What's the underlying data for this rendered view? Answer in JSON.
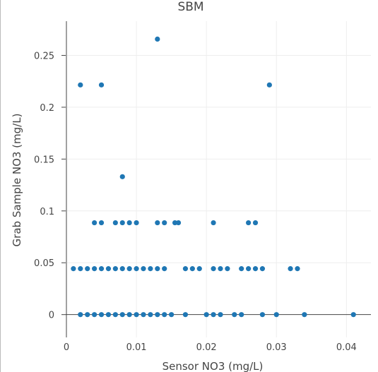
{
  "chart_data": {
    "type": "scatter",
    "title": "SBM",
    "xlabel": "Sensor NO3 (mg/L)",
    "ylabel": "Grab Sample NO3 (mg/L)",
    "xlim": [
      -0.0001,
      0.0435
    ],
    "ylim": [
      -0.022,
      0.283
    ],
    "xticks": [
      0,
      0.01,
      0.02,
      0.03,
      0.04
    ],
    "xtick_labels": [
      "0",
      "0.01",
      "0.02",
      "0.03",
      "0.04"
    ],
    "yticks": [
      0,
      0.05,
      0.1,
      0.15,
      0.2,
      0.25
    ],
    "ytick_labels": [
      "0",
      "0.05",
      "0.1",
      "0.15",
      "0.2",
      "0.25"
    ],
    "grid": true,
    "marker_color": "#1f77b4",
    "series": [
      {
        "x": [
          0.002,
          0.003,
          0.004,
          0.005,
          0.006,
          0.007,
          0.008,
          0.009,
          0.01,
          0.011,
          0.012,
          0.013,
          0.014,
          0.015,
          0.017,
          0.02,
          0.021,
          0.022,
          0.024,
          0.025,
          0.028,
          0.03,
          0.034,
          0.041,
          0.001,
          0.002,
          0.003,
          0.004,
          0.005,
          0.006,
          0.007,
          0.008,
          0.009,
          0.01,
          0.011,
          0.012,
          0.013,
          0.014,
          0.017,
          0.018,
          0.019,
          0.021,
          0.022,
          0.023,
          0.025,
          0.026,
          0.027,
          0.028,
          0.032,
          0.033,
          0.004,
          0.005,
          0.007,
          0.008,
          0.009,
          0.01,
          0.013,
          0.014,
          0.0155,
          0.016,
          0.021,
          0.026,
          0.027,
          0.008,
          0.002,
          0.005,
          0.029,
          0.013
        ],
        "y": [
          0,
          0,
          0,
          0,
          0,
          0,
          0,
          0,
          0,
          0,
          0,
          0,
          0,
          0,
          0,
          0,
          0,
          0,
          0,
          0,
          0,
          0,
          0,
          0,
          0.0443,
          0.0443,
          0.0443,
          0.0443,
          0.0443,
          0.0443,
          0.0443,
          0.0443,
          0.0443,
          0.0443,
          0.0443,
          0.0443,
          0.0443,
          0.0443,
          0.0443,
          0.0443,
          0.0443,
          0.0443,
          0.0443,
          0.0443,
          0.0443,
          0.0443,
          0.0443,
          0.0443,
          0.0443,
          0.0443,
          0.0886,
          0.0886,
          0.0886,
          0.0886,
          0.0886,
          0.0886,
          0.0886,
          0.0886,
          0.0886,
          0.0886,
          0.0886,
          0.0886,
          0.0886,
          0.133,
          0.2215,
          0.2215,
          0.2215,
          0.2657
        ]
      }
    ]
  }
}
